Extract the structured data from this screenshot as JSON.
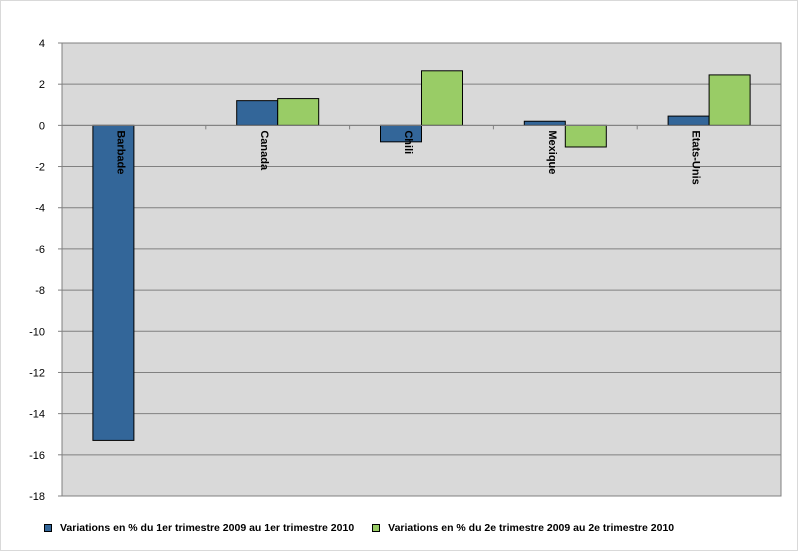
{
  "chart_data": {
    "type": "bar",
    "categories": [
      "Barbade",
      "Canada",
      "Chili",
      "Mexique",
      "Etats-Unis"
    ],
    "series": [
      {
        "name": "Variations en % du 1er trimestre 2009 au 1er trimestre 2010",
        "values": [
          -15.3,
          1.2,
          -0.8,
          0.2,
          0.45
        ],
        "color": "#336699"
      },
      {
        "name": "Variations en % du 2e trimestre 2009 au 2e trimestre 2010",
        "values": [
          0,
          1.3,
          2.65,
          -1.05,
          2.45
        ],
        "color": "#99CC66"
      }
    ],
    "ylim": [
      -18,
      4
    ],
    "yticks": [
      "4",
      "2",
      "0",
      "-2",
      "-4",
      "-6",
      "-8",
      "-10",
      "-12",
      "-14",
      "-16",
      "-18"
    ],
    "grid": true,
    "legend_position": "bottom",
    "plot_background": "#d9d9d9"
  }
}
